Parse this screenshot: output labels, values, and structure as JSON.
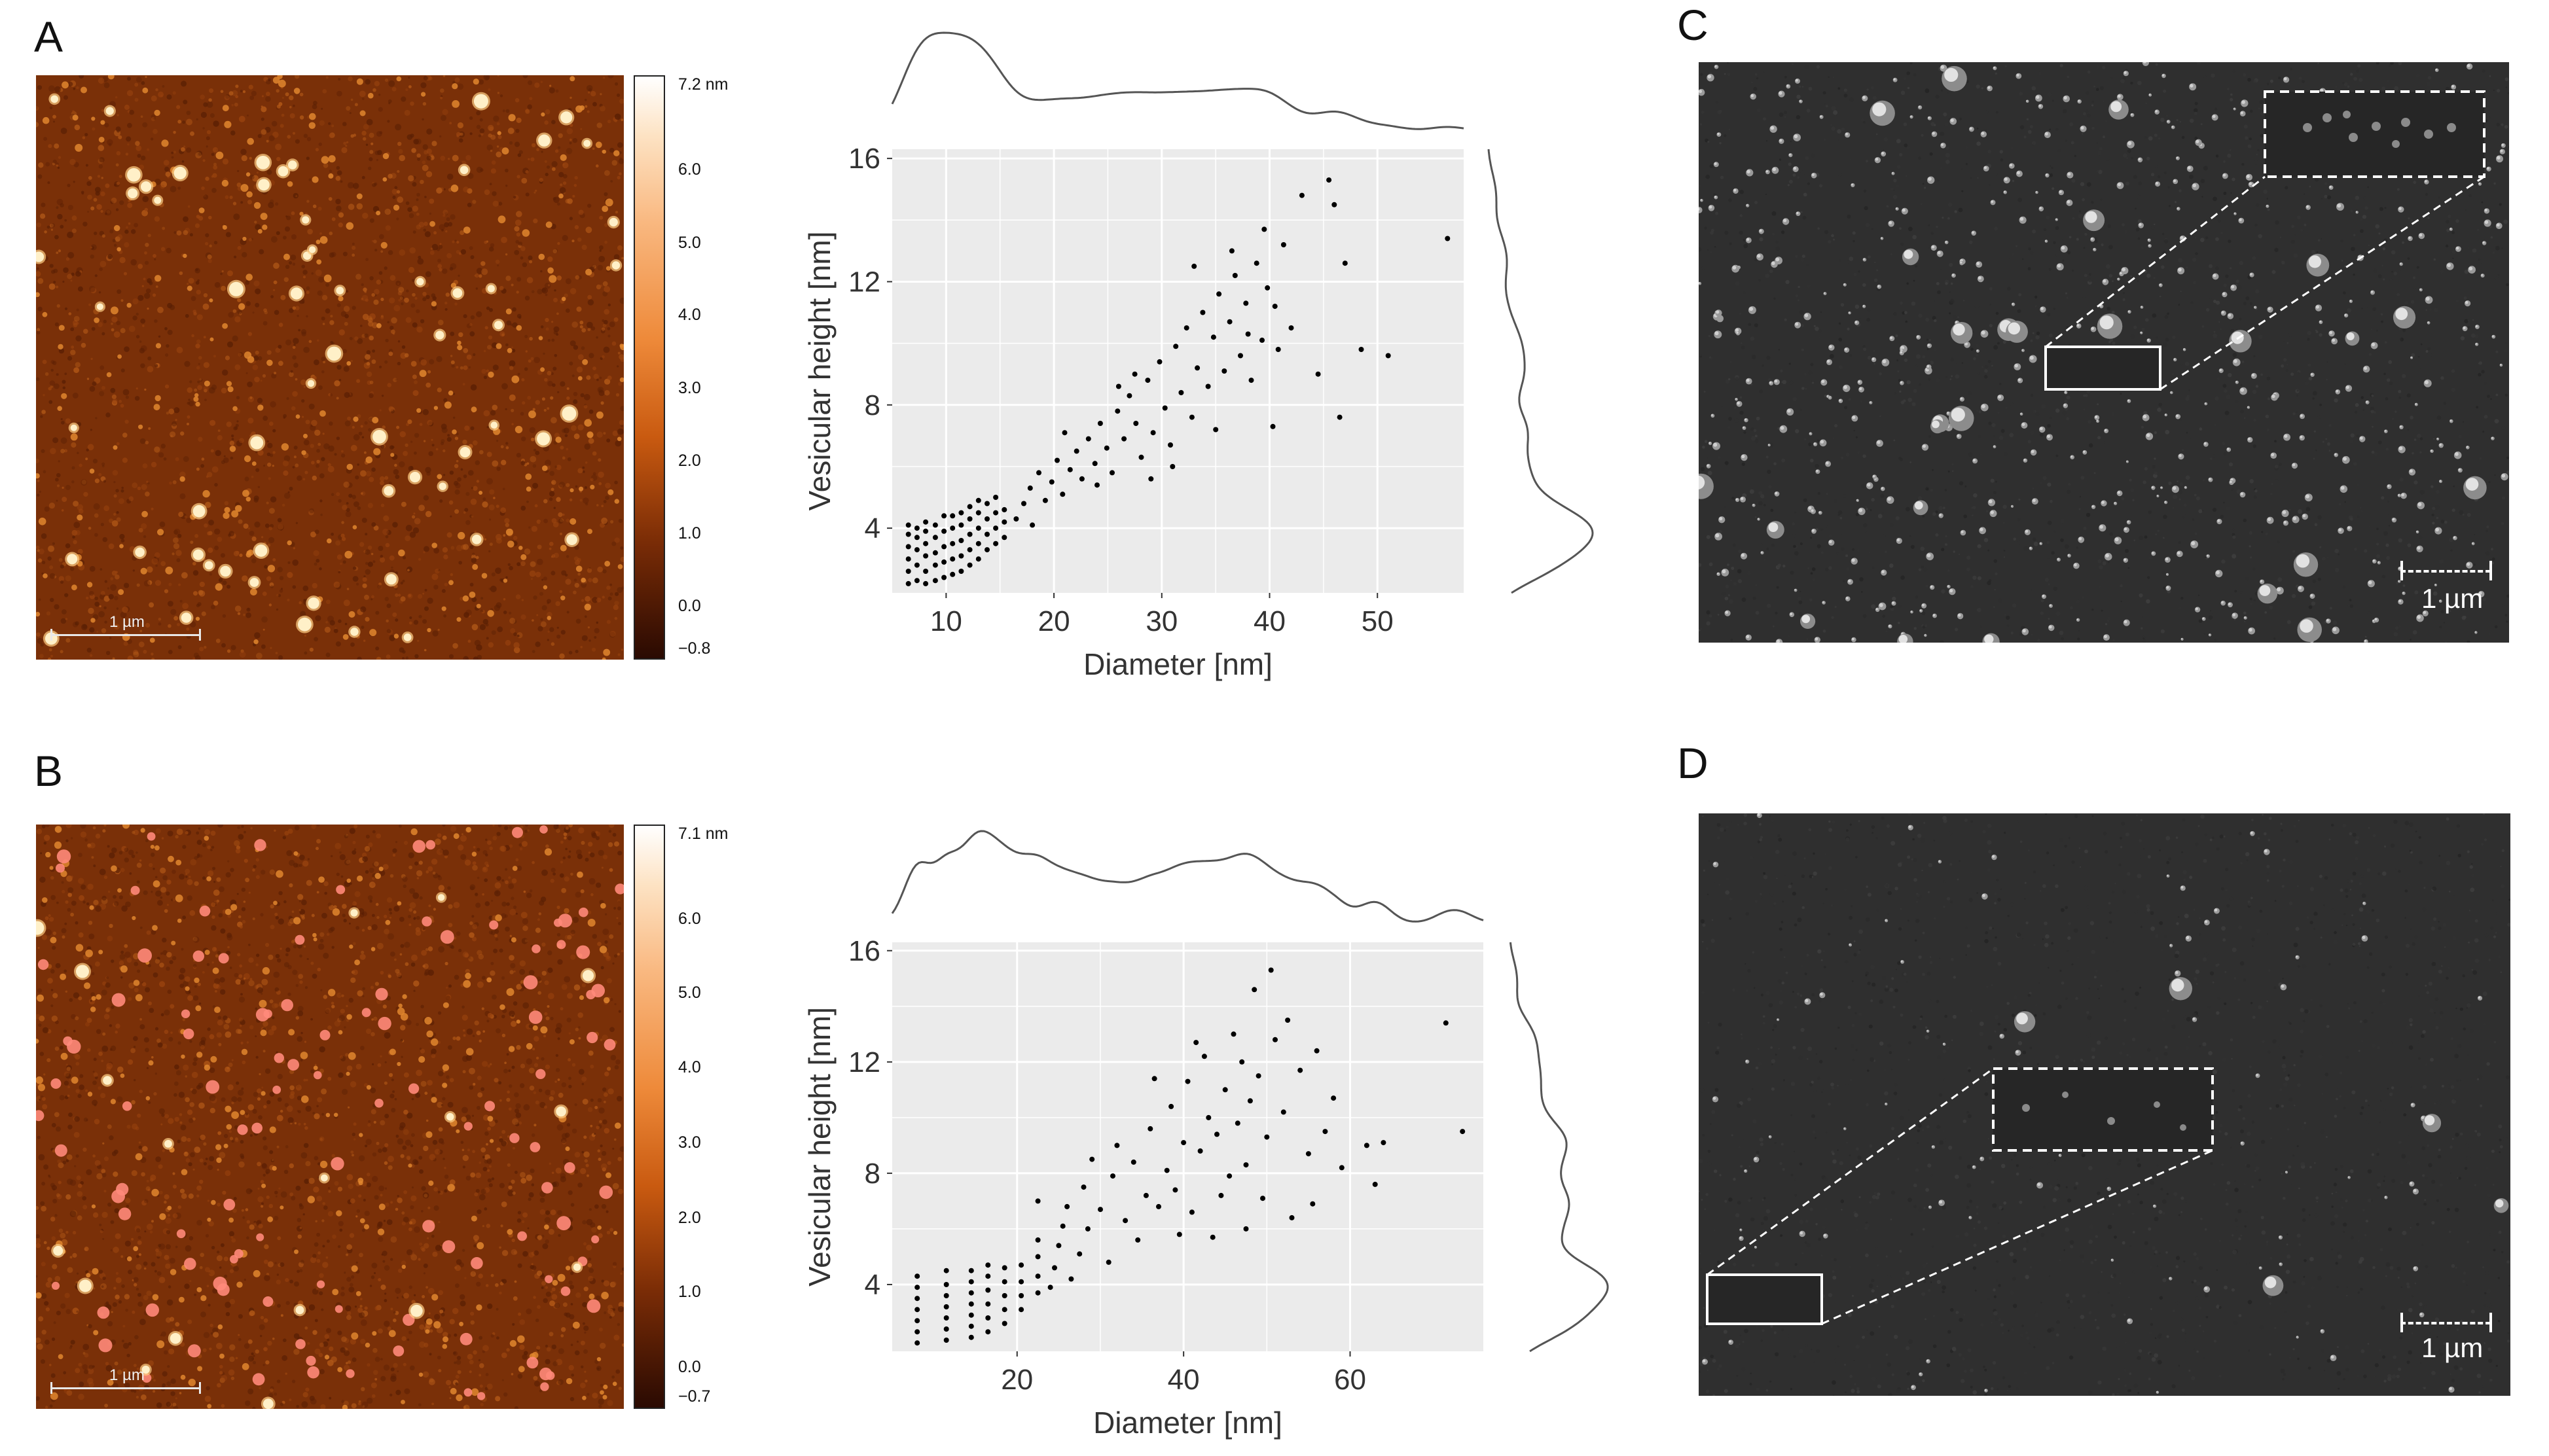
{
  "panels": {
    "A": {
      "letter": "A",
      "colorbar_labels": [
        "7.2 nm",
        "6.0",
        "5.0",
        "4.0",
        "3.0",
        "2.0",
        "1.0",
        "0.0",
        "−0.8"
      ],
      "scalebar_label": "1 µm"
    },
    "B": {
      "letter": "B",
      "colorbar_labels": [
        "7.1 nm",
        "6.0",
        "5.0",
        "4.0",
        "3.0",
        "2.0",
        "1.0",
        "0.0",
        "−0.7"
      ],
      "scalebar_label": "1 µm"
    },
    "C": {
      "letter": "C",
      "scalebar_label": "1 µm"
    },
    "D": {
      "letter": "D",
      "scalebar_label": "1 µm"
    }
  },
  "colors": {
    "afm_background": "#7a3008",
    "afm_bright": "#fff0c8",
    "afm_pink_particles": "#ff8a7a",
    "plot_panel": "#ebebeb",
    "grid": "#ffffff",
    "points": "#000000",
    "density_line": "#555555",
    "sem_background": "#2f2f2f"
  },
  "chart_data": [
    {
      "id": "A",
      "type": "scatter",
      "xlabel": "Diameter [nm]",
      "ylabel": "Vesicular height [nm]",
      "xlim": [
        5,
        58
      ],
      "ylim": [
        1.9,
        16.3
      ],
      "xticks": [
        10,
        20,
        30,
        40,
        50
      ],
      "yticks": [
        4,
        8,
        12,
        16
      ],
      "marginal_x_density": true,
      "marginal_y_density": true,
      "marginal_x_peak_nm": 10.5,
      "marginal_y_peak_nm": 3.3,
      "points": [
        [
          6.5,
          2.2
        ],
        [
          6.5,
          2.6
        ],
        [
          6.5,
          3.0
        ],
        [
          6.5,
          3.4
        ],
        [
          6.5,
          3.8
        ],
        [
          6.5,
          4.1
        ],
        [
          7.3,
          2.3
        ],
        [
          7.3,
          2.8
        ],
        [
          7.3,
          3.3
        ],
        [
          7.3,
          3.7
        ],
        [
          7.3,
          4.0
        ],
        [
          8.1,
          2.2
        ],
        [
          8.1,
          2.6
        ],
        [
          8.1,
          3.1
        ],
        [
          8.1,
          3.5
        ],
        [
          8.1,
          3.9
        ],
        [
          8.1,
          4.2
        ],
        [
          9.0,
          2.3
        ],
        [
          9.0,
          2.8
        ],
        [
          9.0,
          3.2
        ],
        [
          9.0,
          3.7
        ],
        [
          9.0,
          4.1
        ],
        [
          9.8,
          2.4
        ],
        [
          9.8,
          2.9
        ],
        [
          9.8,
          3.4
        ],
        [
          9.8,
          3.9
        ],
        [
          9.8,
          4.4
        ],
        [
          10.6,
          2.5
        ],
        [
          10.6,
          3.0
        ],
        [
          10.6,
          3.5
        ],
        [
          10.6,
          4.0
        ],
        [
          10.6,
          4.4
        ],
        [
          11.4,
          2.6
        ],
        [
          11.4,
          3.1
        ],
        [
          11.4,
          3.6
        ],
        [
          11.4,
          4.1
        ],
        [
          11.4,
          4.5
        ],
        [
          12.2,
          2.8
        ],
        [
          12.2,
          3.3
        ],
        [
          12.2,
          3.8
        ],
        [
          12.2,
          4.3
        ],
        [
          12.2,
          4.7
        ],
        [
          13.0,
          3.0
        ],
        [
          13.0,
          3.5
        ],
        [
          13.0,
          4.0
        ],
        [
          13.0,
          4.5
        ],
        [
          13.0,
          4.9
        ],
        [
          13.8,
          3.3
        ],
        [
          13.8,
          3.8
        ],
        [
          13.8,
          4.3
        ],
        [
          13.8,
          4.8
        ],
        [
          14.6,
          3.5
        ],
        [
          14.6,
          4.0
        ],
        [
          14.6,
          4.5
        ],
        [
          14.6,
          5.0
        ],
        [
          15.4,
          3.7
        ],
        [
          15.4,
          4.2
        ],
        [
          15.4,
          4.6
        ],
        [
          16.5,
          4.3
        ],
        [
          17.2,
          4.8
        ],
        [
          17.8,
          5.3
        ],
        [
          18.0,
          4.1
        ],
        [
          18.6,
          5.8
        ],
        [
          19.2,
          4.9
        ],
        [
          19.8,
          5.5
        ],
        [
          20.3,
          6.2
        ],
        [
          20.8,
          5.1
        ],
        [
          21.5,
          5.9
        ],
        [
          22.1,
          6.5
        ],
        [
          22.6,
          5.6
        ],
        [
          23.2,
          6.9
        ],
        [
          23.8,
          6.1
        ],
        [
          24.3,
          7.4
        ],
        [
          24.9,
          6.6
        ],
        [
          25.4,
          5.8
        ],
        [
          25.9,
          7.8
        ],
        [
          26.5,
          6.9
        ],
        [
          27.0,
          8.3
        ],
        [
          27.6,
          7.4
        ],
        [
          28.1,
          6.3
        ],
        [
          28.7,
          8.8
        ],
        [
          29.2,
          7.1
        ],
        [
          29.8,
          9.4
        ],
        [
          30.3,
          7.9
        ],
        [
          30.8,
          6.7
        ],
        [
          31.3,
          9.9
        ],
        [
          31.8,
          8.4
        ],
        [
          32.3,
          10.5
        ],
        [
          32.8,
          7.6
        ],
        [
          33.3,
          9.2
        ],
        [
          33.8,
          11.0
        ],
        [
          34.3,
          8.6
        ],
        [
          34.8,
          10.2
        ],
        [
          35.3,
          11.6
        ],
        [
          35.8,
          9.1
        ],
        [
          36.3,
          10.7
        ],
        [
          36.8,
          12.2
        ],
        [
          37.3,
          9.6
        ],
        [
          37.8,
          11.3
        ],
        [
          38.3,
          8.8
        ],
        [
          38.8,
          12.6
        ],
        [
          39.3,
          10.1
        ],
        [
          39.8,
          11.8
        ],
        [
          40.3,
          7.3
        ],
        [
          40.8,
          9.8
        ],
        [
          41.3,
          13.2
        ],
        [
          42.0,
          10.5
        ],
        [
          43.0,
          14.8
        ],
        [
          44.5,
          9.0
        ],
        [
          45.5,
          15.3
        ],
        [
          46.0,
          14.5
        ],
        [
          46.5,
          7.6
        ],
        [
          47.0,
          12.6
        ],
        [
          48.5,
          9.8
        ],
        [
          51.0,
          9.6
        ],
        [
          56.5,
          13.4
        ],
        [
          27.5,
          9.0
        ],
        [
          31.0,
          6.0
        ],
        [
          33.0,
          12.5
        ],
        [
          35.0,
          7.2
        ],
        [
          36.5,
          13.0
        ],
        [
          38.0,
          10.3
        ],
        [
          39.5,
          13.7
        ],
        [
          40.5,
          11.2
        ],
        [
          29.0,
          5.6
        ],
        [
          26.0,
          8.6
        ],
        [
          24.0,
          5.4
        ],
        [
          21.0,
          7.1
        ]
      ]
    },
    {
      "id": "B",
      "type": "scatter",
      "xlabel": "Diameter [nm]",
      "ylabel": "Vesicular height [nm]",
      "xlim": [
        5,
        76
      ],
      "ylim": [
        1.6,
        16.3
      ],
      "xticks": [
        20,
        40,
        60
      ],
      "yticks": [
        4,
        8,
        12,
        16
      ],
      "marginal_x_density": true,
      "marginal_y_density": true,
      "marginal_x_peak_nm": 15.5,
      "marginal_y_peak_nm": 3.0,
      "points": [
        [
          8.0,
          1.9
        ],
        [
          8.0,
          2.3
        ],
        [
          8.0,
          2.7
        ],
        [
          8.0,
          3.1
        ],
        [
          8.0,
          3.5
        ],
        [
          8.0,
          3.9
        ],
        [
          8.0,
          4.3
        ],
        [
          11.5,
          2.0
        ],
        [
          11.5,
          2.4
        ],
        [
          11.5,
          2.8
        ],
        [
          11.5,
          3.2
        ],
        [
          11.5,
          3.6
        ],
        [
          11.5,
          4.0
        ],
        [
          11.5,
          4.5
        ],
        [
          14.5,
          2.1
        ],
        [
          14.5,
          2.5
        ],
        [
          14.5,
          2.9
        ],
        [
          14.5,
          3.3
        ],
        [
          14.5,
          3.7
        ],
        [
          14.5,
          4.1
        ],
        [
          14.5,
          4.5
        ],
        [
          16.5,
          2.3
        ],
        [
          16.5,
          2.8
        ],
        [
          16.5,
          3.3
        ],
        [
          16.5,
          3.8
        ],
        [
          16.5,
          4.3
        ],
        [
          16.5,
          4.7
        ],
        [
          18.5,
          2.6
        ],
        [
          18.5,
          3.1
        ],
        [
          18.5,
          3.6
        ],
        [
          18.5,
          4.1
        ],
        [
          18.5,
          4.6
        ],
        [
          20.5,
          3.1
        ],
        [
          20.5,
          3.6
        ],
        [
          20.5,
          4.1
        ],
        [
          20.5,
          4.7
        ],
        [
          22.5,
          3.7
        ],
        [
          22.5,
          4.3
        ],
        [
          22.5,
          5.0
        ],
        [
          22.5,
          5.6
        ],
        [
          22.5,
          7.0
        ],
        [
          24.0,
          3.9
        ],
        [
          24.5,
          4.6
        ],
        [
          25.0,
          5.4
        ],
        [
          25.5,
          6.1
        ],
        [
          26.0,
          6.8
        ],
        [
          26.5,
          4.2
        ],
        [
          27.5,
          5.1
        ],
        [
          28.0,
          7.5
        ],
        [
          28.5,
          6.0
        ],
        [
          29.0,
          8.5
        ],
        [
          30.0,
          6.7
        ],
        [
          31.0,
          4.8
        ],
        [
          31.5,
          7.9
        ],
        [
          32.0,
          9.0
        ],
        [
          33.0,
          6.3
        ],
        [
          34.0,
          8.4
        ],
        [
          34.5,
          5.6
        ],
        [
          35.5,
          7.2
        ],
        [
          36.0,
          9.6
        ],
        [
          37.0,
          6.8
        ],
        [
          38.0,
          8.1
        ],
        [
          38.5,
          10.4
        ],
        [
          39.0,
          7.4
        ],
        [
          40.0,
          9.1
        ],
        [
          40.5,
          11.3
        ],
        [
          41.0,
          6.6
        ],
        [
          42.0,
          8.8
        ],
        [
          42.5,
          12.2
        ],
        [
          43.0,
          10.0
        ],
        [
          43.5,
          5.7
        ],
        [
          44.0,
          9.4
        ],
        [
          45.0,
          11.0
        ],
        [
          45.5,
          7.9
        ],
        [
          46.0,
          13.0
        ],
        [
          46.5,
          9.8
        ],
        [
          47.0,
          12.0
        ],
        [
          47.5,
          8.3
        ],
        [
          48.0,
          10.6
        ],
        [
          48.5,
          14.6
        ],
        [
          49.0,
          11.5
        ],
        [
          49.5,
          7.1
        ],
        [
          50.0,
          9.3
        ],
        [
          50.5,
          15.3
        ],
        [
          51.0,
          12.8
        ],
        [
          52.0,
          10.2
        ],
        [
          53.0,
          6.4
        ],
        [
          54.0,
          11.7
        ],
        [
          55.0,
          8.7
        ],
        [
          56.0,
          12.4
        ],
        [
          57.0,
          9.5
        ],
        [
          58.0,
          10.7
        ],
        [
          59.0,
          8.2
        ],
        [
          62.0,
          9.0
        ],
        [
          63.0,
          7.6
        ],
        [
          64.0,
          9.1
        ],
        [
          71.5,
          13.4
        ],
        [
          73.5,
          9.5
        ],
        [
          44.5,
          7.2
        ],
        [
          47.5,
          6.0
        ],
        [
          41.5,
          12.7
        ],
        [
          39.5,
          5.8
        ],
        [
          36.5,
          11.4
        ],
        [
          52.5,
          13.5
        ],
        [
          55.5,
          6.9
        ]
      ]
    }
  ]
}
